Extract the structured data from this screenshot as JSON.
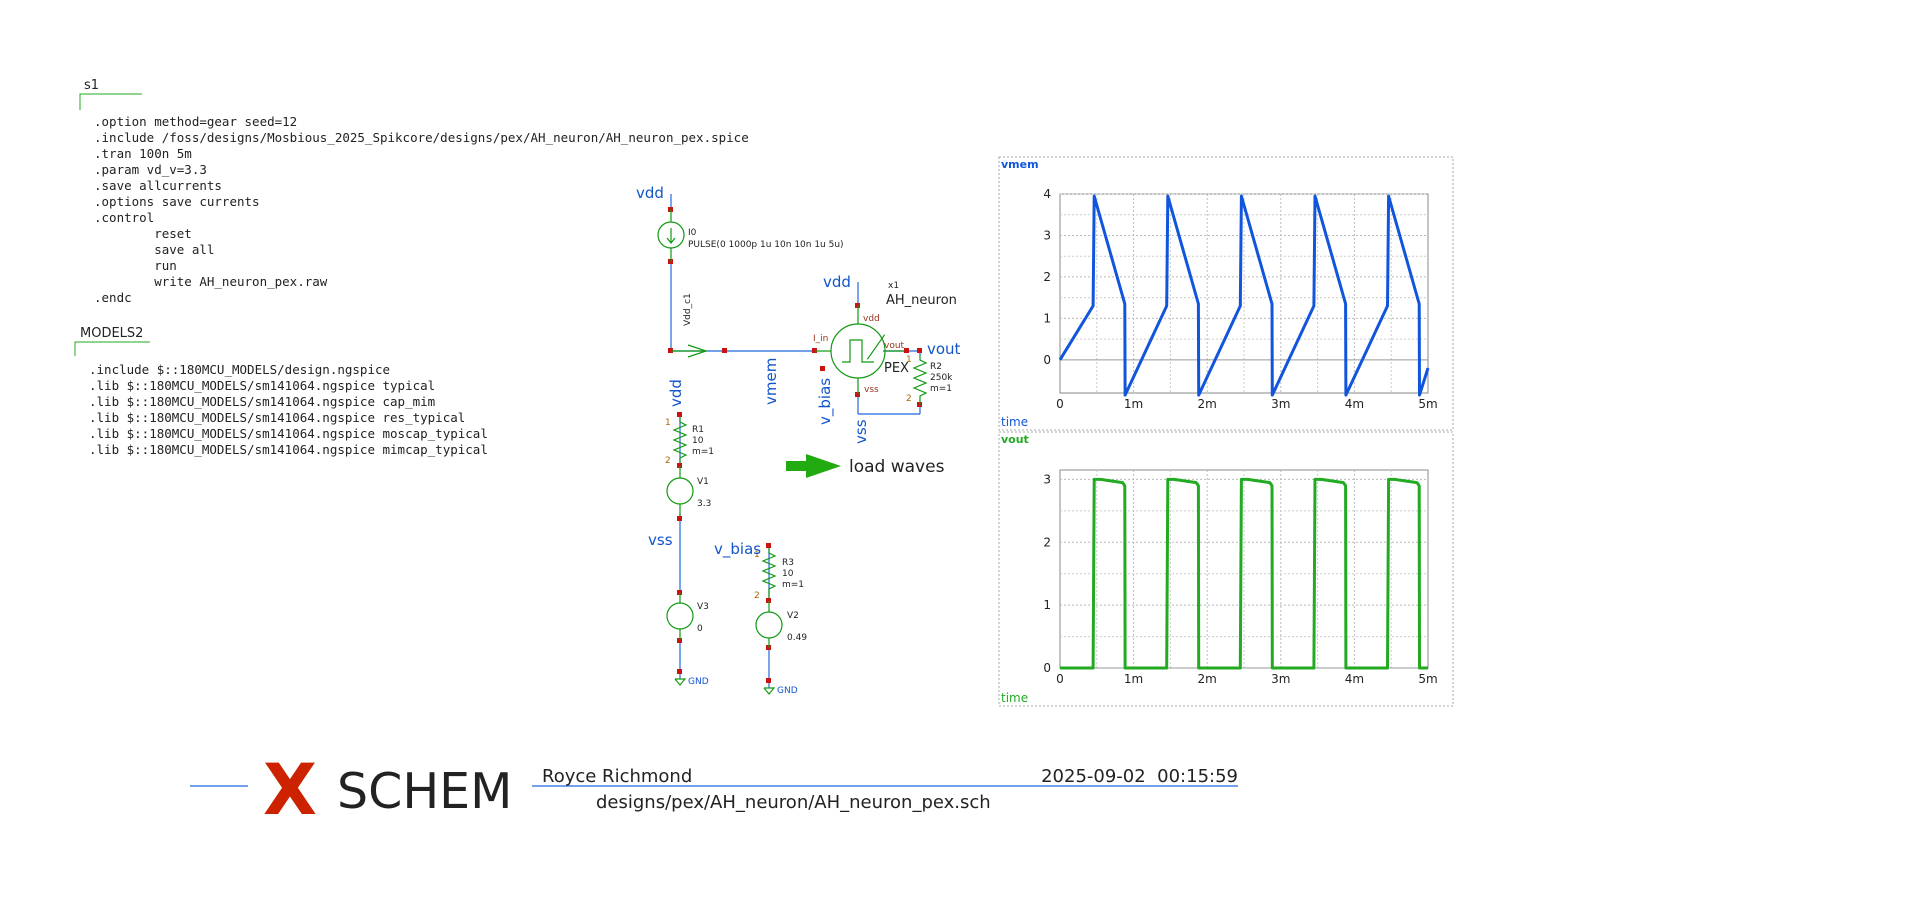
{
  "netlist_block": {
    "title": "s1",
    "lines": [
      ".option method=gear seed=12",
      ".include /foss/designs/Mosbious_2025_Spikcore/designs/pex/AH_neuron/AH_neuron_pex.spice",
      ".tran 100n 5m",
      ".param vd_v=3.3",
      ".save allcurrents",
      ".options save currents",
      ".control",
      "        reset",
      "        save all",
      "        run",
      "        write AH_neuron_pex.raw",
      ".endc"
    ]
  },
  "models_block": {
    "title": "MODELS2",
    "lines": [
      ".include $::180MCU_MODELS/design.ngspice",
      ".lib $::180MCU_MODELS/sm141064.ngspice typical",
      ".lib $::180MCU_MODELS/sm141064.ngspice cap_mim",
      ".lib $::180MCU_MODELS/sm141064.ngspice res_typical",
      ".lib $::180MCU_MODELS/sm141064.ngspice moscap_typical",
      ".lib $::180MCU_MODELS/sm141064.ngspice mimcap_typical"
    ]
  },
  "schematic": {
    "i0": {
      "name": "I0",
      "value": "PULSE(0 1000p 1u 10n 10n 1u 5u)"
    },
    "r1": {
      "name": "R1",
      "value": "10",
      "mult": "m=1"
    },
    "r2": {
      "name": "R2",
      "value": "250k",
      "mult": "m=1"
    },
    "r3": {
      "name": "R3",
      "value": "10",
      "mult": "m=1"
    },
    "v1": {
      "name": "V1",
      "value": "3.3"
    },
    "v2": {
      "name": "V2",
      "value": "0.49"
    },
    "v3": {
      "name": "V3",
      "value": "0"
    },
    "x1": {
      "name": "x1",
      "cell": "AH_neuron",
      "tag": "PEX",
      "pins": {
        "vdd": "vdd",
        "i_in": "I_in",
        "vout": "vout",
        "vss": "vss"
      }
    },
    "nets": {
      "vdd": "vdd",
      "vdd_c1": "Vdd_c1",
      "vmem": "vmem",
      "vout": "vout",
      "v_bias": "v_bias",
      "vss": "vss",
      "gnd": "GND"
    },
    "pin_numbers": {
      "one": "1",
      "two": "2"
    },
    "load_waves": "load waves"
  },
  "colors": {
    "wire": "#2266dd",
    "net_label": "#1155cc",
    "component": "#119911",
    "pin": "#cc1111",
    "vmem_trace": "#1155dd",
    "vout_trace": "#22aa22",
    "logo_x": "#cc2200",
    "text": "#222222"
  },
  "chart_data": [
    {
      "type": "line",
      "title": "vmem",
      "xlabel": "time",
      "ylabel": "",
      "x_ticks": [
        "0",
        "1m",
        "2m",
        "3m",
        "4m",
        "5m"
      ],
      "y_ticks": [
        "0",
        "1",
        "2",
        "3",
        "4"
      ],
      "xlim": [
        0,
        0.005
      ],
      "ylim": [
        -0.8,
        4
      ],
      "grid": true,
      "series": [
        {
          "name": "vmem",
          "x": [
            0,
            0.00045,
            0.000465,
            0.00088,
            0.000885,
            0.00145,
            0.001465,
            0.00188,
            0.001885,
            0.00245,
            0.002465,
            0.00288,
            0.002885,
            0.00345,
            0.003465,
            0.00388,
            0.003885,
            0.00445,
            0.004465,
            0.00488,
            0.004885,
            0.005
          ],
          "y": [
            0,
            1.3,
            3.95,
            1.35,
            -0.85,
            1.3,
            3.95,
            1.35,
            -0.85,
            1.3,
            3.95,
            1.35,
            -0.85,
            1.3,
            3.95,
            1.35,
            -0.85,
            1.3,
            3.95,
            1.35,
            -0.85,
            -0.2
          ]
        }
      ]
    },
    {
      "type": "line",
      "title": "vout",
      "xlabel": "time",
      "ylabel": "",
      "x_ticks": [
        "0",
        "1m",
        "2m",
        "3m",
        "4m",
        "5m"
      ],
      "y_ticks": [
        "0",
        "1",
        "2",
        "3"
      ],
      "xlim": [
        0,
        0.005
      ],
      "ylim": [
        0,
        3.15
      ],
      "grid": true,
      "series": [
        {
          "name": "vout",
          "x": [
            0,
            0.00045,
            0.000465,
            0.00055,
            0.00085,
            0.00088,
            0.000885,
            0.00145,
            0.001465,
            0.00155,
            0.00185,
            0.00188,
            0.001885,
            0.00245,
            0.002465,
            0.00255,
            0.00285,
            0.00288,
            0.002885,
            0.00345,
            0.003465,
            0.00355,
            0.00385,
            0.00388,
            0.003885,
            0.00445,
            0.004465,
            0.00455,
            0.00485,
            0.00488,
            0.004885,
            0.005
          ],
          "y": [
            0,
            0,
            3.0,
            3.0,
            2.95,
            2.9,
            0,
            0,
            3.0,
            3.0,
            2.95,
            2.9,
            0,
            0,
            3.0,
            3.0,
            2.95,
            2.9,
            0,
            0,
            3.0,
            3.0,
            2.95,
            2.9,
            0,
            0,
            3.0,
            3.0,
            2.95,
            2.9,
            0,
            0
          ]
        }
      ]
    }
  ],
  "title_block": {
    "logo_letter": "X",
    "logo_word": "SCHEM",
    "author": "Royce Richmond",
    "date": "2025-09-02  00:15:59",
    "path": "designs/pex/AH_neuron/AH_neuron_pex.sch"
  }
}
